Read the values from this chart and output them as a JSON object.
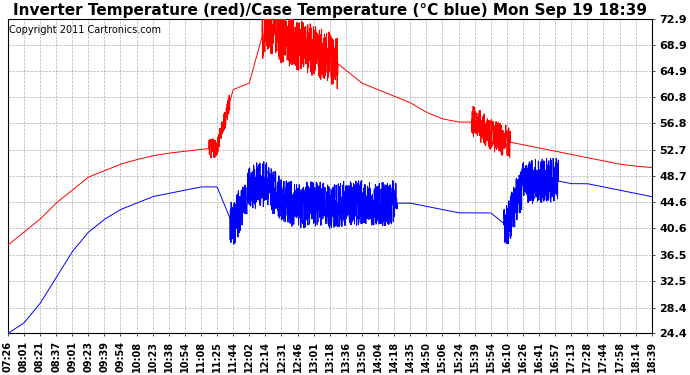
{
  "title": "Inverter Temperature (red)/Case Temperature (°C blue) Mon Sep 19 18:39",
  "copyright": "Copyright 2011 Cartronics.com",
  "yticks": [
    24.4,
    28.4,
    32.5,
    36.5,
    40.6,
    44.6,
    48.7,
    52.7,
    56.8,
    60.8,
    64.9,
    68.9,
    72.9
  ],
  "ymin": 24.4,
  "ymax": 72.9,
  "xtick_labels": [
    "07:26",
    "08:01",
    "08:21",
    "08:37",
    "09:01",
    "09:23",
    "09:39",
    "09:54",
    "10:08",
    "10:23",
    "10:38",
    "10:54",
    "11:08",
    "11:25",
    "11:44",
    "12:02",
    "12:14",
    "12:31",
    "12:46",
    "13:01",
    "13:18",
    "13:36",
    "13:50",
    "14:04",
    "14:18",
    "14:35",
    "14:50",
    "15:06",
    "15:24",
    "15:39",
    "15:54",
    "16:10",
    "16:26",
    "16:41",
    "16:57",
    "17:13",
    "17:28",
    "17:44",
    "17:58",
    "18:14",
    "18:39"
  ],
  "red_line_color": "#ff0000",
  "blue_line_color": "#0000ff",
  "background_color": "#ffffff",
  "grid_color": "#b0b0b0",
  "title_fontsize": 11,
  "copyright_fontsize": 7,
  "tick_fontsize": 7,
  "ytick_fontsize": 8
}
